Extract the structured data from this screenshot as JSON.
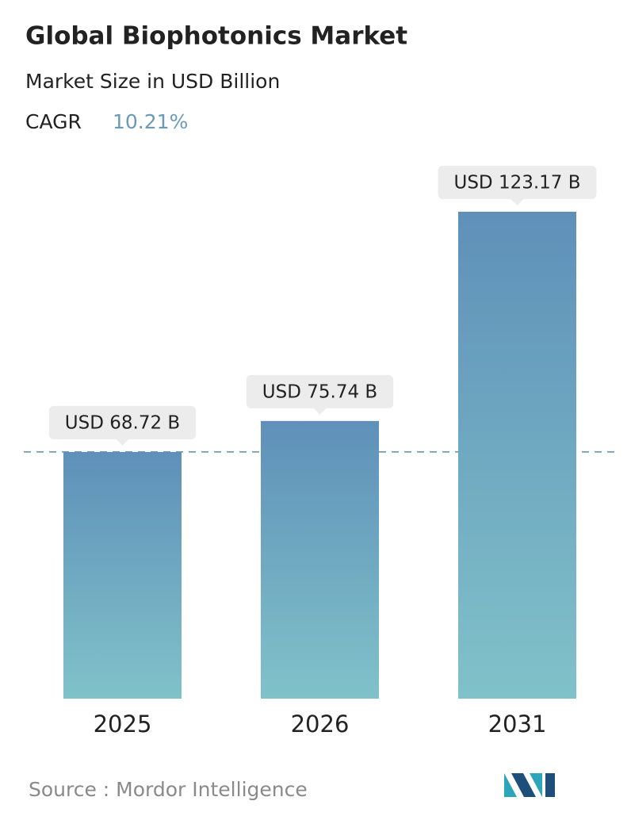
{
  "chart_data": {
    "type": "bar",
    "title": "Global Biophotonics Market",
    "subtitle": "Market Size in USD Billion",
    "cagr_label": "CAGR",
    "cagr": {
      "value": 10.21,
      "label": "10.21%"
    },
    "categories": [
      "2025",
      "2026",
      "2031"
    ],
    "values": [
      68.72,
      75.74,
      123.17
    ],
    "value_labels": [
      "USD 68.72 B",
      "USD 75.74 B",
      "USD 123.17 B"
    ],
    "ylim": [
      12.8,
      130
    ],
    "source": "Source :  Mordor Intelligence"
  }
}
